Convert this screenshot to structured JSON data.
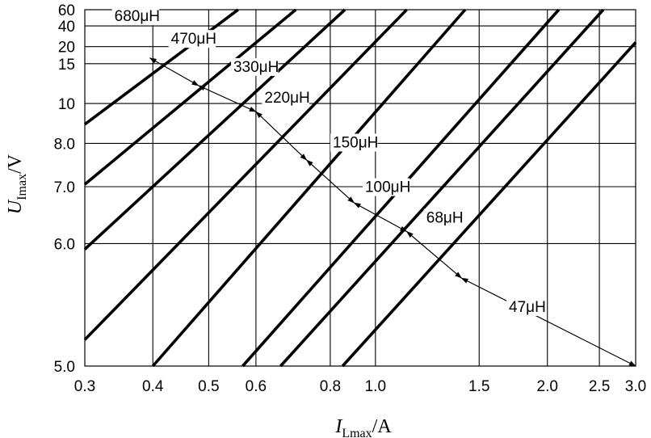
{
  "chart_data": {
    "type": "line",
    "title": "",
    "xlabel": {
      "main": "I",
      "sub": "Lmax",
      "unit": "/A"
    },
    "ylabel": {
      "main": "U",
      "sub": "Imax",
      "unit": "/V"
    },
    "x_ticks": [
      0.3,
      0.4,
      0.5,
      0.6,
      0.8,
      1.0,
      1.5,
      2.0,
      2.5,
      3.0
    ],
    "x_tick_labels": [
      "0.3",
      "0.4",
      "0.5",
      "0.6",
      "0.8",
      "1.0",
      "1.5",
      "2.0",
      "2.5",
      "3.0"
    ],
    "y_ticks": [
      5.0,
      6.0,
      7.0,
      8.0,
      10,
      15,
      20,
      40,
      60
    ],
    "y_tick_labels": [
      "5.0",
      "6.0",
      "7.0",
      "8.0",
      "10",
      "15",
      "20",
      "40",
      "60"
    ],
    "grid": true,
    "series": [
      {
        "name": "680μH",
        "line": [
          [
            0.3,
            8.9
          ],
          [
            0.56,
            60
          ]
        ]
      },
      {
        "name": "470μH",
        "line": [
          [
            0.3,
            7.05
          ],
          [
            0.7,
            60
          ]
        ]
      },
      {
        "name": "330μH",
        "line": [
          [
            0.3,
            5.95
          ],
          [
            0.86,
            60
          ]
        ]
      },
      {
        "name": "220μH",
        "line": [
          [
            0.3,
            5.2
          ],
          [
            1.13,
            60
          ]
        ]
      },
      {
        "name": "150μH",
        "line": [
          [
            0.4,
            5.0
          ],
          [
            1.42,
            60
          ]
        ]
      },
      {
        "name": "100μH",
        "line": [
          [
            0.57,
            5.0
          ],
          [
            2.1,
            60
          ]
        ]
      },
      {
        "name": "68μH",
        "line": [
          [
            0.66,
            5.0
          ],
          [
            2.55,
            60
          ]
        ]
      },
      {
        "name": "47μH",
        "line": [
          [
            0.85,
            5.0
          ],
          [
            3.0,
            23
          ]
        ]
      }
    ],
    "boundary_points": [
      [
        0.395,
        16.5
      ],
      [
        0.48,
        12.0
      ],
      [
        0.6,
        9.55
      ],
      [
        0.73,
        7.6
      ],
      [
        0.9,
        6.7
      ],
      [
        1.13,
        6.2
      ],
      [
        1.4,
        5.7
      ]
    ],
    "boundary_end": [
      3.0,
      5.0
    ],
    "label_positions": [
      [
        0.34,
        45
      ],
      [
        0.43,
        22
      ],
      [
        0.55,
        13.8
      ],
      [
        0.62,
        10.1
      ],
      [
        0.81,
        7.9
      ],
      [
        0.95,
        6.9
      ],
      [
        1.22,
        6.35
      ],
      [
        1.7,
        5.42
      ]
    ]
  }
}
